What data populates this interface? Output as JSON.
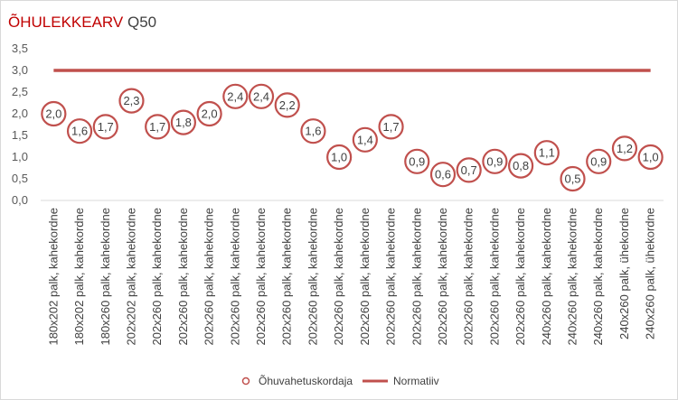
{
  "chart_data": {
    "type": "scatter",
    "title": "ÕHULEKKEARV",
    "subtitle": "Q50",
    "categories": [
      "180x202 palk, kahekordne",
      "180x202 palk, kahekordne",
      "180x260 palk, kahekordne",
      "202x202 palk, kahekordne",
      "202x260 palk, kahekordne",
      "202x260 palk, kahekordne",
      "202x260 palk, kahekordne",
      "202x260 palk, kahekordne",
      "202x260 palk, kahekordne",
      "202x260 palk, kahekordne",
      "202x260 palk, kahekordne",
      "202x260 palk, kahekordne",
      "202x260 palk, kahekordne",
      "202x260 palk, kahekordne",
      "202x260 palk, kahekordne",
      "202x260 palk, kahekordne",
      "202x260 palk, kahekordne",
      "202x260 palk, kahekordne",
      "202x260 palk, kahekordne",
      "240x260 palk, kahekordne",
      "240x260 palk, kahekordne",
      "240x260 palk, kahekordne",
      "240x260 palk, ühekordne",
      "240x260 palk, ühekordne"
    ],
    "series": [
      {
        "name": "Õhuvahetuskordaja",
        "type": "scatter",
        "color": "#c0504d",
        "values": [
          2.0,
          1.6,
          1.7,
          2.3,
          1.7,
          1.8,
          2.0,
          2.4,
          2.4,
          2.2,
          1.6,
          1.0,
          1.4,
          1.7,
          0.9,
          0.6,
          0.7,
          0.9,
          0.8,
          1.1,
          0.5,
          0.9,
          1.2,
          1.0
        ],
        "labels": [
          "2,0",
          "1,6",
          "1,7",
          "2,3",
          "1,7",
          "1,8",
          "2,0",
          "2,4",
          "2,4",
          "2,2",
          "1,6",
          "1,0",
          "1,4",
          "1,7",
          "0,9",
          "0,6",
          "0,7",
          "0,9",
          "0,8",
          "1,1",
          "0,5",
          "0,9",
          "1,2",
          "1,0"
        ]
      },
      {
        "name": "Normatiiv",
        "type": "line",
        "color": "#c0504d",
        "values": [
          3.0,
          3.0,
          3.0,
          3.0,
          3.0,
          3.0,
          3.0,
          3.0,
          3.0,
          3.0,
          3.0,
          3.0,
          3.0,
          3.0,
          3.0,
          3.0,
          3.0,
          3.0,
          3.0,
          3.0,
          3.0,
          3.0,
          3.0,
          3.0
        ]
      }
    ],
    "ylim": [
      0,
      3.5
    ],
    "yticks": [
      "0,0",
      "0,5",
      "1,0",
      "1,5",
      "2,0",
      "2,5",
      "3,0",
      "3,5"
    ],
    "grid": false,
    "legend_position": "bottom"
  }
}
